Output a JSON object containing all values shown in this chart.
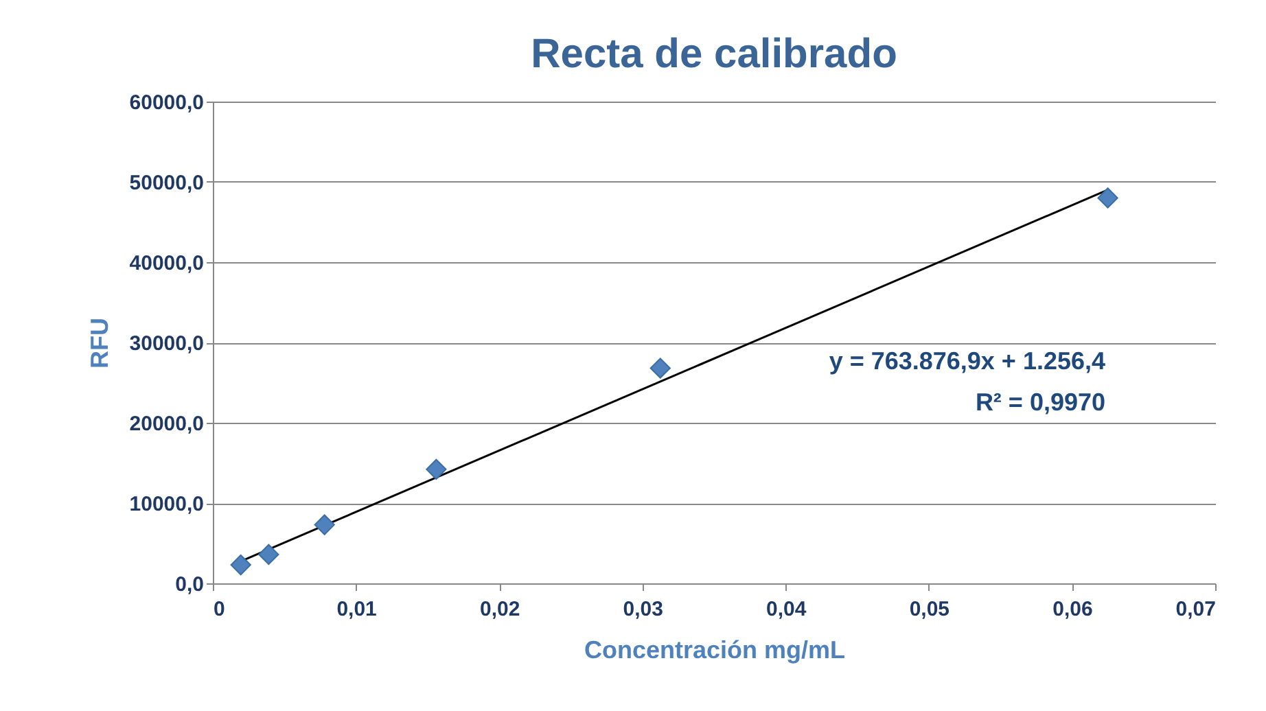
{
  "chart_data": {
    "type": "scatter",
    "title": "Recta de calibrado",
    "xlabel": "Concentración mg/mL",
    "ylabel": "RFU",
    "marker": "diamond",
    "grid": "y",
    "xlim": [
      0,
      0.07
    ],
    "xticks": [
      0,
      {
        "value": 0.01,
        "label": "0,01"
      },
      {
        "value": 0.02,
        "label": "0,02"
      },
      {
        "value": 0.03,
        "label": "0,03"
      },
      {
        "value": 0.04,
        "label": "0,04"
      },
      {
        "value": 0.05,
        "label": "0,05"
      },
      {
        "value": 0.06,
        "label": "0,06"
      },
      {
        "value": 0.07,
        "label": "0,07"
      }
    ],
    "ylim": [
      0,
      60000
    ],
    "yticks": [
      {
        "value": 0,
        "label": "0,0"
      },
      {
        "value": 10000,
        "label": "10000,0"
      },
      {
        "value": 20000,
        "label": "20000,0"
      },
      {
        "value": 30000,
        "label": "30000,0"
      },
      {
        "value": 40000,
        "label": "40000,0"
      },
      {
        "value": 50000,
        "label": "50000,0"
      },
      {
        "value": 60000,
        "label": "60000,0"
      }
    ],
    "series": [
      {
        "color": "#4f81bd",
        "x": [
          0.00195,
          0.0039,
          0.0078,
          0.0156,
          0.03125,
          0.0625
        ],
        "values": [
          2300,
          3600,
          7300,
          14200,
          26800,
          48000
        ]
      },
      {
        "type": "line",
        "marker": "none",
        "color": "#000000",
        "x": [
          0.00195,
          0.0625
        ],
        "values": [
          2750,
          49000
        ]
      }
    ],
    "annotations": [
      "y = 763.876,9x + 1.256,4",
      "R² = 0,9970"
    ]
  }
}
